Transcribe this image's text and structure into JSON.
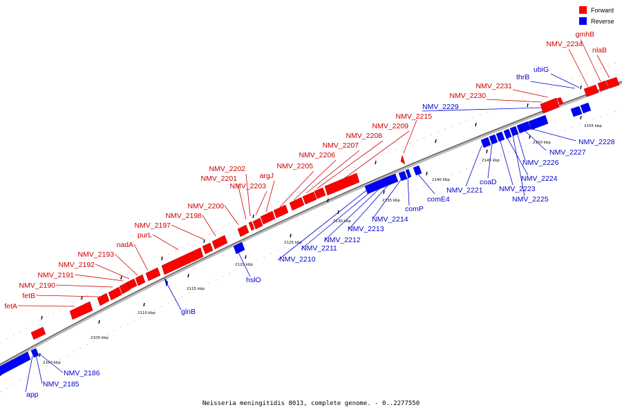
{
  "caption": "Neisseria meningitidis 8013, complete genome. - 0..2277550",
  "legend": {
    "forward": {
      "label": "Forward",
      "color": "#ff0000"
    },
    "reverse": {
      "label": "Reverse",
      "color": "#0000ff"
    }
  },
  "colors": {
    "forward_label": "#cc0000",
    "reverse_label": "#0000cc",
    "backbone": "#555555"
  },
  "ticks": {
    "labels": [
      "2100 kbp",
      "2105 kbp",
      "2110 kbp",
      "2115 kbp",
      "2120 kbp",
      "2125 kbp",
      "2130 kbp",
      "2135 kbp",
      "2140 kbp",
      "2145 kbp",
      "2150 kbp",
      "2155 kbp"
    ]
  },
  "forward_genes": [
    "fetA",
    "fetB",
    "NMV_2190",
    "NMV_2191",
    "NMV_2192",
    "NMV_2193",
    "nadA",
    "purL",
    "NMV_2197",
    "NMV_2198",
    "NMV_2200",
    "NMV_2201",
    "NMV_2202",
    "NMV_2203",
    "argJ",
    "NMV_2205",
    "NMV_2206",
    "NMV_2207",
    "NMV_2208",
    "NMV_2209",
    "NMV_2215",
    "NMV_2230",
    "NMV_2231",
    "NMV_2234",
    "gmhB",
    "nlaB"
  ],
  "reverse_genes": [
    "app",
    "NMV_2185",
    "NMV_2186",
    "glnB",
    "hslO",
    "NMV_2210",
    "NMV_2211",
    "NMV_2212",
    "NMV_2213",
    "NMV_2214",
    "comP",
    "comE4",
    "NMV_2221",
    "coaD",
    "NMV_2223",
    "NMV_2224",
    "NMV_2225",
    "NMV_2226",
    "NMV_2227",
    "NMV_2228",
    "thrB",
    "ubiG",
    "NMV_2229"
  ]
}
